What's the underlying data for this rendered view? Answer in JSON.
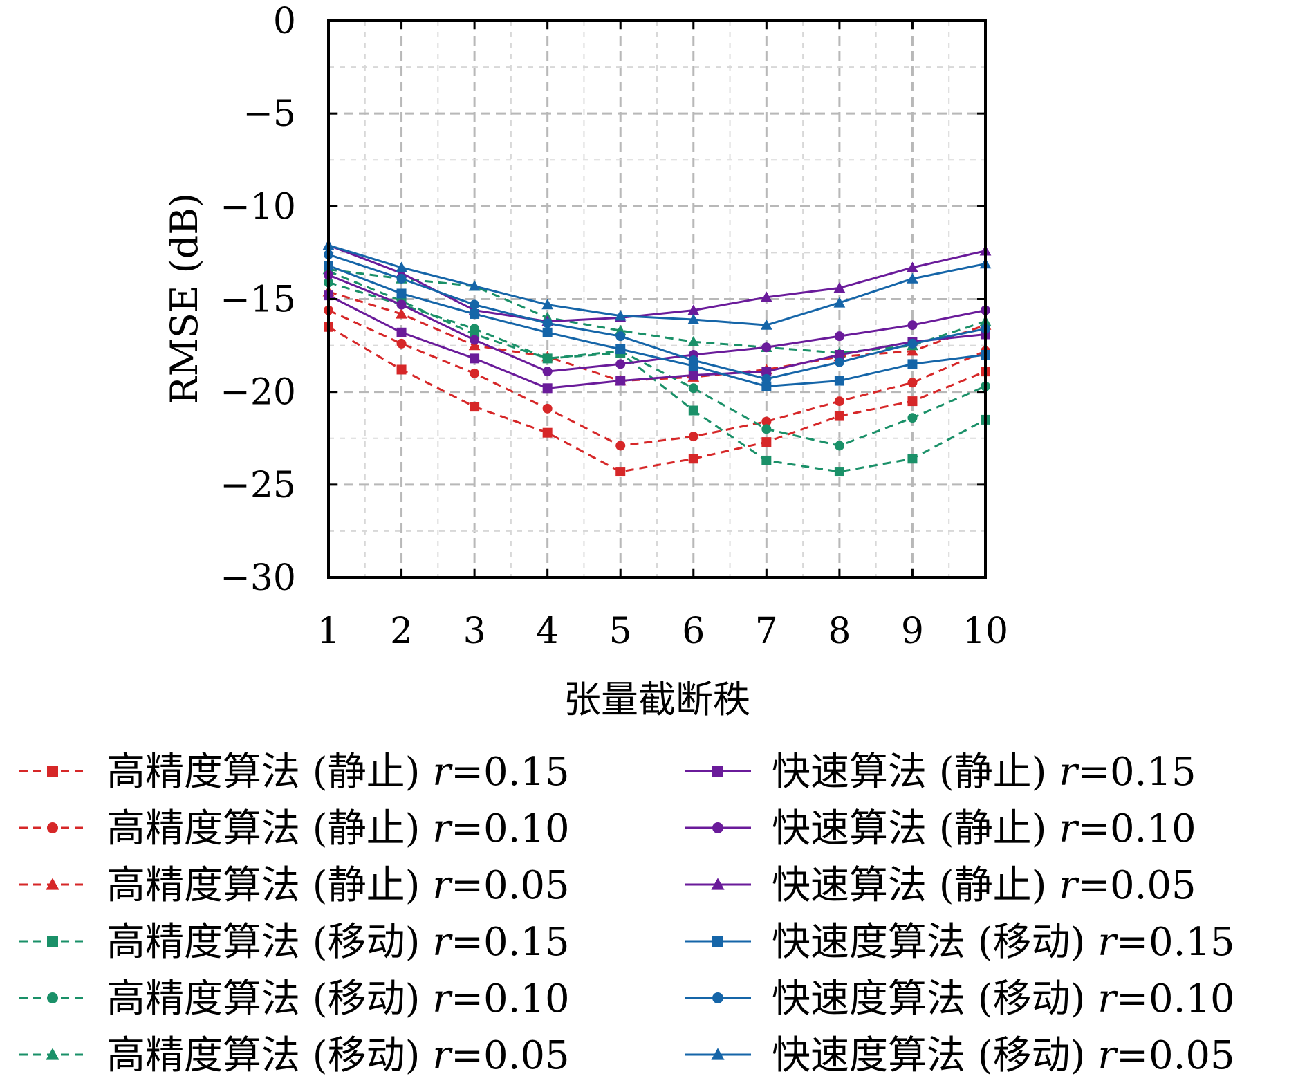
{
  "chart_data": {
    "type": "line",
    "xlabel": "张量截断秩",
    "ylabel": "RMSE (dB)",
    "x": [
      1,
      2,
      3,
      4,
      5,
      6,
      7,
      8,
      9,
      10
    ],
    "xlim": [
      1,
      10
    ],
    "ylim": [
      -30,
      0
    ],
    "xticks": [
      "1",
      "2",
      "3",
      "4",
      "5",
      "6",
      "7",
      "8",
      "9",
      "10"
    ],
    "yticks": [
      {
        "value": 0,
        "label": "0"
      },
      {
        "value": -5,
        "label": "−5"
      },
      {
        "value": -10,
        "label": "−10"
      },
      {
        "value": -15,
        "label": "−15"
      },
      {
        "value": -20,
        "label": "−20"
      },
      {
        "value": -25,
        "label": "−25"
      },
      {
        "value": -30,
        "label": "−30"
      }
    ],
    "grid": true,
    "legend_position": "bottom",
    "series": [
      {
        "name": "高精度算法 (静止) r=0.15",
        "color": "#d62728",
        "dash": "dashed",
        "marker": "square",
        "values": [
          -16.5,
          -18.8,
          -20.8,
          -22.2,
          -24.3,
          -23.6,
          -22.7,
          -21.3,
          -20.5,
          -18.9
        ]
      },
      {
        "name": "高精度算法 (静止) r=0.10",
        "color": "#d62728",
        "dash": "dashed",
        "marker": "circle",
        "values": [
          -15.6,
          -17.4,
          -19.0,
          -20.9,
          -22.9,
          -22.4,
          -21.6,
          -20.5,
          -19.5,
          -17.8
        ]
      },
      {
        "name": "高精度算法 (静止) r=0.05",
        "color": "#d62728",
        "dash": "dashed",
        "marker": "triangle",
        "values": [
          -14.6,
          -15.8,
          -17.5,
          -18.1,
          -19.4,
          -19.2,
          -18.8,
          -18.1,
          -17.8,
          -16.4
        ]
      },
      {
        "name": "高精度算法 (移动) r=0.15",
        "color": "#1a9068",
        "dash": "dashed",
        "marker": "square",
        "values": [
          -13.5,
          -15.1,
          -16.9,
          -18.2,
          -17.9,
          -21.0,
          -23.7,
          -24.3,
          -23.6,
          -21.5
        ]
      },
      {
        "name": "高精度算法 (移动) r=0.10",
        "color": "#1a9068",
        "dash": "dashed",
        "marker": "circle",
        "values": [
          -14.1,
          -15.3,
          -16.6,
          -18.2,
          -17.8,
          -19.8,
          -22.0,
          -22.9,
          -21.4,
          -19.7
        ]
      },
      {
        "name": "高精度算法 (移动) r=0.05",
        "color": "#1a9068",
        "dash": "dashed",
        "marker": "triangle",
        "values": [
          -13.4,
          -13.9,
          -14.3,
          -16.0,
          -16.7,
          -17.3,
          -17.6,
          -17.9,
          -17.5,
          -16.2
        ]
      },
      {
        "name": "快速算法 (静止) r=0.15",
        "color": "#6a1b9a",
        "dash": "solid",
        "marker": "square",
        "values": [
          -14.8,
          -16.8,
          -18.2,
          -19.8,
          -19.4,
          -19.1,
          -18.9,
          -18.0,
          -17.3,
          -16.9
        ]
      },
      {
        "name": "快速算法 (静止) r=0.10",
        "color": "#6a1b9a",
        "dash": "solid",
        "marker": "circle",
        "values": [
          -13.7,
          -15.3,
          -17.2,
          -18.9,
          -18.5,
          -18.0,
          -17.6,
          -17.0,
          -16.4,
          -15.6
        ]
      },
      {
        "name": "快速算法 (静止) r=0.05",
        "color": "#6a1b9a",
        "dash": "solid",
        "marker": "triangle",
        "values": [
          -12.1,
          -13.6,
          -15.6,
          -16.2,
          -16.0,
          -15.6,
          -14.9,
          -14.4,
          -13.3,
          -12.4
        ]
      },
      {
        "name": "快速度算法 (移动) r=0.15",
        "color": "#1565a8",
        "dash": "solid",
        "marker": "square",
        "values": [
          -13.2,
          -14.7,
          -15.8,
          -16.8,
          -17.7,
          -18.6,
          -19.7,
          -19.4,
          -18.5,
          -18.0
        ]
      },
      {
        "name": "快速度算法 (移动) r=0.10",
        "color": "#1565a8",
        "dash": "solid",
        "marker": "circle",
        "values": [
          -12.6,
          -13.9,
          -15.3,
          -16.3,
          -17.0,
          -18.3,
          -19.3,
          -18.4,
          -17.4,
          -16.6
        ]
      },
      {
        "name": "快速度算法 (移动) r=0.05",
        "color": "#1565a8",
        "dash": "solid",
        "marker": "triangle",
        "values": [
          -12.1,
          -13.3,
          -14.3,
          -15.3,
          -15.9,
          -16.1,
          -16.4,
          -15.2,
          -13.9,
          -13.1
        ]
      }
    ]
  },
  "legend": {
    "items": [
      {
        "label": "高精度算法 (静止) ",
        "r": "r",
        "value": "=0.15"
      },
      {
        "label": "高精度算法 (静止) ",
        "r": "r",
        "value": "=0.10"
      },
      {
        "label": "高精度算法 (静止) ",
        "r": "r",
        "value": "=0.05"
      },
      {
        "label": "高精度算法 (移动) ",
        "r": "r",
        "value": "=0.15"
      },
      {
        "label": "高精度算法 (移动) ",
        "r": "r",
        "value": "=0.10"
      },
      {
        "label": "高精度算法 (移动) ",
        "r": "r",
        "value": "=0.05"
      },
      {
        "label": "快速算法 (静止) ",
        "r": "r",
        "value": "=0.15"
      },
      {
        "label": "快速算法 (静止) ",
        "r": "r",
        "value": "=0.10"
      },
      {
        "label": "快速算法 (静止) ",
        "r": "r",
        "value": "=0.05"
      },
      {
        "label": "快速度算法 (移动) ",
        "r": "r",
        "value": "=0.15"
      },
      {
        "label": "快速度算法 (移动) ",
        "r": "r",
        "value": "=0.10"
      },
      {
        "label": "快速度算法 (移动) ",
        "r": "r",
        "value": "=0.05"
      }
    ]
  }
}
